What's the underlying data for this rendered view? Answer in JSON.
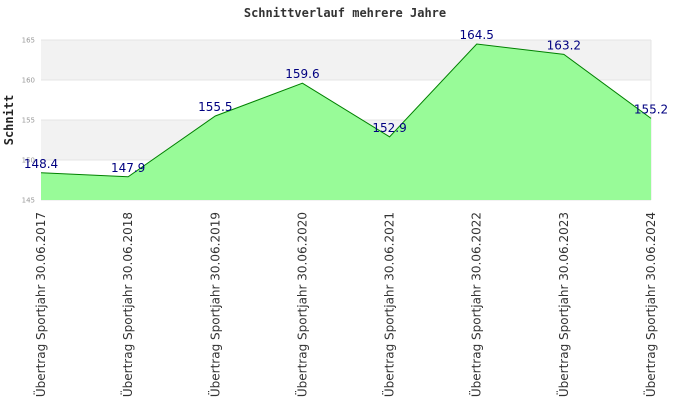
{
  "chart_data": {
    "type": "area",
    "title": "Schnittverlauf mehrere Jahre",
    "xlabel": "",
    "ylabel": "Schnitt",
    "categories": [
      "Übertrag Sportjahr 30.06.2017",
      "Übertrag Sportjahr 30.06.2018",
      "Übertrag Sportjahr 30.06.2019",
      "Übertrag Sportjahr 30.06.2020",
      "Übertrag Sportjahr 30.06.2021",
      "Übertrag Sportjahr 30.06.2022",
      "Übertrag Sportjahr 30.06.2023",
      "Übertrag Sportjahr 30.06.2024"
    ],
    "values": [
      148.4,
      147.9,
      155.5,
      159.6,
      152.9,
      164.5,
      163.2,
      155.2
    ],
    "data_labels": [
      "148.4",
      "147.9",
      "155.5",
      "159.6",
      "152.9",
      "164.5",
      "163.2",
      "155.2"
    ],
    "ylim": [
      145,
      165
    ],
    "yticks": [
      "145",
      "150",
      "155",
      "160",
      "165"
    ],
    "grid": true,
    "fill_color": "#98fb98",
    "line_color": "#008000",
    "band_color": "#f2f2f2"
  }
}
